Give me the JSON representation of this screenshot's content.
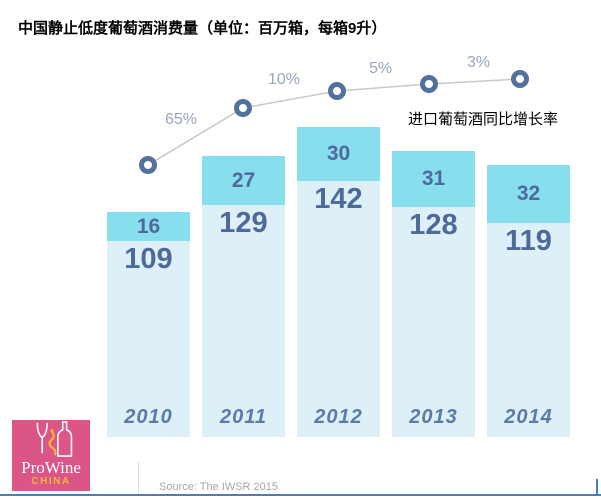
{
  "title": "中国静止低度葡萄酒消费量（单位：百万箱，每箱9升）",
  "annotation": "进口葡萄酒同比增长率",
  "chart_data": {
    "type": "bar",
    "stacked": true,
    "title": "中国静止低度葡萄酒消费量（单位：百万箱，每箱9升）",
    "categories": [
      "2010",
      "2011",
      "2012",
      "2013",
      "2014"
    ],
    "series": [
      {
        "name": "bottom-segment",
        "values": [
          109,
          129,
          142,
          128,
          119
        ]
      },
      {
        "name": "top-segment",
        "values": [
          16,
          27,
          30,
          31,
          32
        ]
      }
    ],
    "totals": [
      125,
      156,
      172,
      159,
      151
    ],
    "line_overlay": {
      "label": "进口葡萄酒同比增长率",
      "segment_labels": [
        "65%",
        "10%",
        "5%",
        "3%"
      ],
      "marker_years": [
        "2010",
        "2011",
        "2012",
        "2013",
        "2014"
      ]
    },
    "grid": false,
    "legend_position": "none",
    "unit": "百万箱"
  },
  "footer": {
    "source": "Source: The IWSR 2015"
  },
  "logo": {
    "name": "ProWine",
    "sub": "CHINA"
  },
  "colors": {
    "bar_top": "#87DEEC",
    "bar_bottom": "#DDF0F8",
    "value_text": "#4E6A9B",
    "year_text": "#5B7BA6",
    "marker": "#54719E",
    "trend_line": "#C8C8C8",
    "percent_text": "#97A5BD",
    "logo_pink": "#DB5687",
    "logo_gold": "#F2B630",
    "bottom_rule": "#4A7EBB",
    "source_text": "#A6A6A6"
  }
}
